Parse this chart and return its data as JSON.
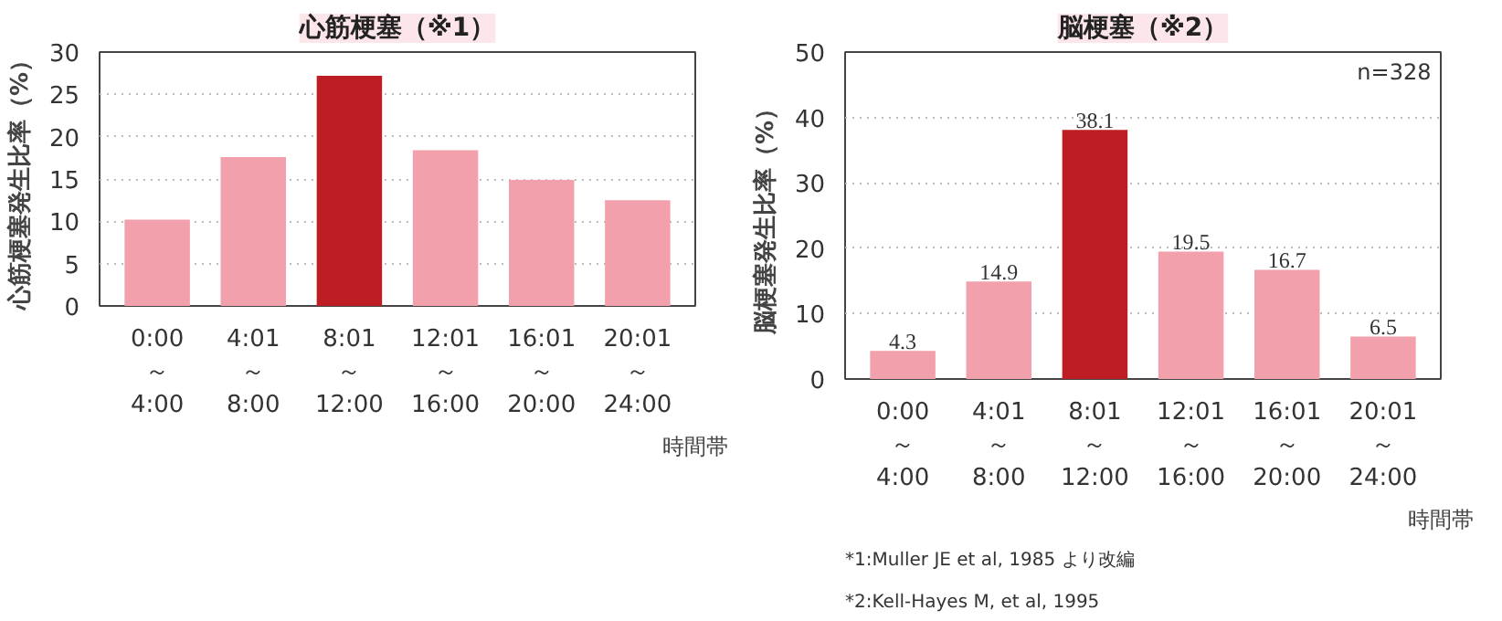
{
  "chart_data": [
    {
      "type": "bar",
      "title": "心筋梗塞（※1）",
      "ylabel": "心筋梗塞発生比率（%）",
      "xlabel": "時間帯",
      "categories": [
        "0:00\n～\n4:00",
        "4:01\n～\n8:00",
        "8:01\n～\n12:00",
        "12:01\n～\n16:00",
        "16:01\n～\n20:00",
        "20:01\n～\n24:00"
      ],
      "values": [
        10.2,
        17.6,
        27.2,
        18.4,
        14.9,
        12.5
      ],
      "colors": [
        "#f2a0ab",
        "#f2a0ab",
        "#be1e23",
        "#f2a0ab",
        "#f2a0ab",
        "#f2a0ab"
      ],
      "ylim": [
        0,
        30
      ],
      "yticks": [
        0,
        5,
        10,
        15,
        20,
        25,
        30
      ],
      "grid": "y"
    },
    {
      "type": "bar",
      "title": "脳梗塞（※2）",
      "ylabel": "脳梗塞発生比率（%）",
      "xlabel": "時間帯",
      "categories": [
        "0:00\n～\n4:00",
        "4:01\n～\n8:00",
        "8:01\n～\n12:00",
        "12:01\n～\n16:00",
        "16:01\n～\n20:00",
        "20:01\n～\n24:00"
      ],
      "values": [
        4.3,
        14.9,
        38.1,
        19.5,
        16.7,
        6.5
      ],
      "colors": [
        "#f2a0ab",
        "#f2a0ab",
        "#be1e23",
        "#f2a0ab",
        "#f2a0ab",
        "#f2a0ab"
      ],
      "ylim": [
        0,
        50
      ],
      "yticks": [
        0,
        10,
        20,
        30,
        40,
        50
      ],
      "grid": "y",
      "data_labels": true,
      "annotations": [
        "n=328",
        "*1:Muller JE et al, 1985 より改編",
        "*2:Kell-Hayes M, et al, 1995"
      ]
    }
  ]
}
